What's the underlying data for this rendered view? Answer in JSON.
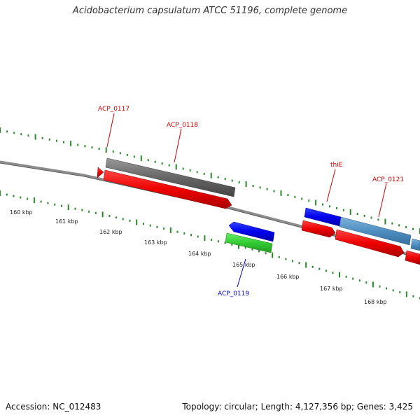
{
  "title": "Acidobacterium capsulatum ATCC 51196, complete genome",
  "footer": {
    "accession": "Accession: NC_012483",
    "summary": "Topology: circular; Length: 4,127,356 bp; Genes: 3,425"
  },
  "ruler": {
    "labels": [
      "160 kbp",
      "161 kbp",
      "162 kbp",
      "163 kbp",
      "164 kbp",
      "165 kbp",
      "166 kbp",
      "167 kbp",
      "168 kbp"
    ]
  },
  "genes": [
    {
      "name": "ACP_0117",
      "color": "#cc0000"
    },
    {
      "name": "ACP_0118",
      "color": "#cc0000"
    },
    {
      "name": "ACP_0119",
      "color": "#0000cc"
    },
    {
      "name": "thiE",
      "color": "#cc0000"
    },
    {
      "name": "ACP_0121",
      "color": "#cc0000"
    }
  ],
  "colors": {
    "forward_cds": "#ee0000",
    "reverse_cds": "#0000ee",
    "pseudo_gray": "#666666",
    "rna_green": "#33cc33",
    "light_blue": "#4f8fc0",
    "tick_green": "#2a8a2a",
    "backbone": "#8c8c8c"
  }
}
